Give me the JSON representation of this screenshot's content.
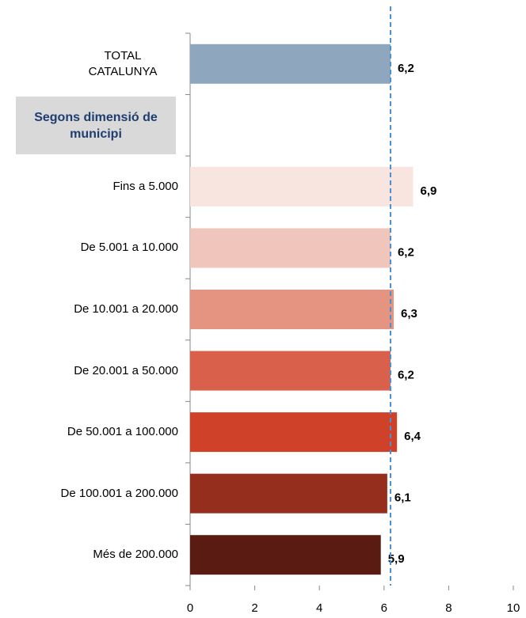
{
  "chart_data": {
    "type": "bar",
    "categories": [
      "TOTAL CATALUNYA",
      "Fins a 5.000",
      "De 5.001 a 10.000",
      "De 10.001 a 20.000",
      "De 20.001 a 50.000",
      "De 50.001 a 100.000",
      "De 100.001 a 200.000",
      "Més de 200.000"
    ],
    "section_label": "Segons dimensió de municipi",
    "values": [
      6.2,
      6.9,
      6.2,
      6.3,
      6.2,
      6.4,
      6.1,
      5.9
    ],
    "value_labels": [
      "6,2",
      "6,9",
      "6,2",
      "6,3",
      "6,2",
      "6,4",
      "6,1",
      "5,9"
    ],
    "colors": [
      "#8ea7bf",
      "#f8e5e0",
      "#f0c5bc",
      "#e49481",
      "#d9614b",
      "#cf4229",
      "#952e1c",
      "#5a1c12"
    ],
    "reference_value": 6.2,
    "reference_color": "#4a8fd0",
    "xlim": [
      0,
      10
    ],
    "xticks": [
      0,
      2,
      4,
      6,
      8,
      10
    ]
  }
}
